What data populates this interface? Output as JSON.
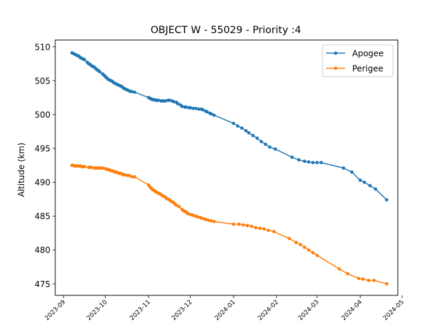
{
  "chart_data": {
    "type": "line",
    "title": "OBJECT W - 55029 - Priority :4",
    "xlabel": "",
    "ylabel": "Altitude (km)",
    "x_axis": "date",
    "xlim": [
      "2023-08-26",
      "2024-04-28"
    ],
    "ylim": [
      473.3,
      511.0
    ],
    "grid": false,
    "legend_position": "top-right",
    "x_ticks": [
      "2023-09",
      "2023-10",
      "2023-11",
      "2023-12",
      "2024-01",
      "2024-02",
      "2024-03",
      "2024-04",
      "2024-05"
    ],
    "y_ticks": [
      475,
      480,
      485,
      490,
      495,
      500,
      505,
      510
    ],
    "series": [
      {
        "name": "Apogee",
        "color": "#1f77b4",
        "marker": "circle",
        "points": [
          [
            "2023-09-07",
            509.1
          ],
          [
            "2023-09-08",
            509.0
          ],
          [
            "2023-09-09",
            508.9
          ],
          [
            "2023-09-10",
            508.8
          ],
          [
            "2023-09-11",
            508.7
          ],
          [
            "2023-09-12",
            508.6
          ],
          [
            "2023-09-13",
            508.4
          ],
          [
            "2023-09-14",
            508.3
          ],
          [
            "2023-09-15",
            508.2
          ],
          [
            "2023-09-16",
            508.1
          ],
          [
            "2023-09-18",
            507.7
          ],
          [
            "2023-09-19",
            507.5
          ],
          [
            "2023-09-20",
            507.4
          ],
          [
            "2023-09-21",
            507.2
          ],
          [
            "2023-09-22",
            507.1
          ],
          [
            "2023-09-23",
            507.0
          ],
          [
            "2023-09-24",
            506.8
          ],
          [
            "2023-09-25",
            506.6
          ],
          [
            "2023-09-26",
            506.5
          ],
          [
            "2023-09-27",
            506.3
          ],
          [
            "2023-09-29",
            506.0
          ],
          [
            "2023-09-30",
            505.8
          ],
          [
            "2023-10-01",
            505.6
          ],
          [
            "2023-10-02",
            505.4
          ],
          [
            "2023-10-03",
            505.2
          ],
          [
            "2023-10-04",
            505.1
          ],
          [
            "2023-10-05",
            505.0
          ],
          [
            "2023-10-06",
            504.9
          ],
          [
            "2023-10-07",
            504.7
          ],
          [
            "2023-10-08",
            504.6
          ],
          [
            "2023-10-09",
            504.5
          ],
          [
            "2023-10-10",
            504.4
          ],
          [
            "2023-10-11",
            504.3
          ],
          [
            "2023-10-12",
            504.2
          ],
          [
            "2023-10-13",
            504.1
          ],
          [
            "2023-10-14",
            503.9
          ],
          [
            "2023-10-15",
            503.8
          ],
          [
            "2023-10-16",
            503.7
          ],
          [
            "2023-10-17",
            503.6
          ],
          [
            "2023-10-18",
            503.5
          ],
          [
            "2023-10-19",
            503.4
          ],
          [
            "2023-10-20",
            503.4
          ],
          [
            "2023-10-22",
            503.3
          ],
          [
            "2023-11-01",
            502.5
          ],
          [
            "2023-11-02",
            502.4
          ],
          [
            "2023-11-03",
            502.3
          ],
          [
            "2023-11-04",
            502.2
          ],
          [
            "2023-11-05",
            502.2
          ],
          [
            "2023-11-06",
            502.1
          ],
          [
            "2023-11-07",
            502.1
          ],
          [
            "2023-11-08",
            502.1
          ],
          [
            "2023-11-10",
            502.0
          ],
          [
            "2023-11-11",
            502.0
          ],
          [
            "2023-11-12",
            502.0
          ],
          [
            "2023-11-13",
            502.0
          ],
          [
            "2023-11-15",
            502.1
          ],
          [
            "2023-11-16",
            502.1
          ],
          [
            "2023-11-18",
            502.0
          ],
          [
            "2023-11-19",
            501.9
          ],
          [
            "2023-11-21",
            501.8
          ],
          [
            "2023-11-22",
            501.6
          ],
          [
            "2023-11-24",
            501.4
          ],
          [
            "2023-11-25",
            501.2
          ],
          [
            "2023-11-27",
            501.1
          ],
          [
            "2023-11-28",
            501.1
          ],
          [
            "2023-11-30",
            501.0
          ],
          [
            "2023-12-01",
            501.0
          ],
          [
            "2023-12-03",
            500.9
          ],
          [
            "2023-12-05",
            500.9
          ],
          [
            "2023-12-07",
            500.8
          ],
          [
            "2023-12-09",
            500.8
          ],
          [
            "2023-12-10",
            500.7
          ],
          [
            "2023-12-12",
            500.5
          ],
          [
            "2023-12-13",
            500.4
          ],
          [
            "2023-12-15",
            500.2
          ],
          [
            "2023-12-16",
            500.1
          ],
          [
            "2023-12-18",
            499.9
          ],
          [
            "2024-01-01",
            498.7
          ],
          [
            "2024-01-04",
            498.3
          ],
          [
            "2024-01-07",
            498.0
          ],
          [
            "2024-01-10",
            497.6
          ],
          [
            "2024-01-12",
            497.3
          ],
          [
            "2024-01-15",
            496.9
          ],
          [
            "2024-01-18",
            496.5
          ],
          [
            "2024-01-21",
            496.0
          ],
          [
            "2024-01-24",
            495.6
          ],
          [
            "2024-01-27",
            495.2
          ],
          [
            "2024-01-31",
            494.9
          ],
          [
            "2024-02-12",
            493.7
          ],
          [
            "2024-02-17",
            493.3
          ],
          [
            "2024-02-21",
            493.1
          ],
          [
            "2024-02-24",
            493.0
          ],
          [
            "2024-02-27",
            492.9
          ],
          [
            "2024-03-01",
            492.9
          ],
          [
            "2024-03-04",
            492.9
          ],
          [
            "2024-03-20",
            492.1
          ],
          [
            "2024-03-26",
            491.5
          ],
          [
            "2024-04-01",
            490.3
          ],
          [
            "2024-04-04",
            490.0
          ],
          [
            "2024-04-08",
            489.5
          ],
          [
            "2024-04-12",
            489.0
          ],
          [
            "2024-04-20",
            487.4
          ]
        ]
      },
      {
        "name": "Perigee",
        "color": "#ff7f0e",
        "marker": "circle",
        "points": [
          [
            "2023-09-07",
            492.5
          ],
          [
            "2023-09-08",
            492.5
          ],
          [
            "2023-09-09",
            492.4
          ],
          [
            "2023-09-10",
            492.4
          ],
          [
            "2023-09-11",
            492.4
          ],
          [
            "2023-09-12",
            492.4
          ],
          [
            "2023-09-13",
            492.4
          ],
          [
            "2023-09-14",
            492.3
          ],
          [
            "2023-09-15",
            492.3
          ],
          [
            "2023-09-16",
            492.3
          ],
          [
            "2023-09-19",
            492.2
          ],
          [
            "2023-09-20",
            492.2
          ],
          [
            "2023-09-21",
            492.2
          ],
          [
            "2023-09-23",
            492.1
          ],
          [
            "2023-09-24",
            492.1
          ],
          [
            "2023-09-25",
            492.1
          ],
          [
            "2023-09-26",
            492.1
          ],
          [
            "2023-09-27",
            492.1
          ],
          [
            "2023-09-28",
            492.1
          ],
          [
            "2023-09-29",
            492.1
          ],
          [
            "2023-10-01",
            492.0
          ],
          [
            "2023-10-02",
            491.9
          ],
          [
            "2023-10-03",
            491.9
          ],
          [
            "2023-10-04",
            491.8
          ],
          [
            "2023-10-05",
            491.7
          ],
          [
            "2023-10-06",
            491.7
          ],
          [
            "2023-10-07",
            491.6
          ],
          [
            "2023-10-08",
            491.5
          ],
          [
            "2023-10-09",
            491.5
          ],
          [
            "2023-10-10",
            491.4
          ],
          [
            "2023-10-11",
            491.3
          ],
          [
            "2023-10-12",
            491.3
          ],
          [
            "2023-10-13",
            491.2
          ],
          [
            "2023-10-14",
            491.1
          ],
          [
            "2023-10-15",
            491.1
          ],
          [
            "2023-10-17",
            491.0
          ],
          [
            "2023-10-18",
            491.0
          ],
          [
            "2023-10-20",
            490.8
          ],
          [
            "2023-10-22",
            490.8
          ],
          [
            "2023-11-01",
            489.6
          ],
          [
            "2023-11-02",
            489.3
          ],
          [
            "2023-11-03",
            489.1
          ],
          [
            "2023-11-04",
            488.9
          ],
          [
            "2023-11-05",
            488.8
          ],
          [
            "2023-11-06",
            488.6
          ],
          [
            "2023-11-07",
            488.5
          ],
          [
            "2023-11-08",
            488.4
          ],
          [
            "2023-11-09",
            488.3
          ],
          [
            "2023-11-10",
            488.2
          ],
          [
            "2023-11-11",
            488.0
          ],
          [
            "2023-11-12",
            487.9
          ],
          [
            "2023-11-13",
            487.8
          ],
          [
            "2023-11-14",
            487.6
          ],
          [
            "2023-11-15",
            487.5
          ],
          [
            "2023-11-16",
            487.4
          ],
          [
            "2023-11-17",
            487.2
          ],
          [
            "2023-11-18",
            487.1
          ],
          [
            "2023-11-19",
            487.0
          ],
          [
            "2023-11-20",
            486.8
          ],
          [
            "2023-11-21",
            486.6
          ],
          [
            "2023-11-23",
            486.4
          ],
          [
            "2023-11-25",
            486.0
          ],
          [
            "2023-11-26",
            485.8
          ],
          [
            "2023-11-27",
            485.7
          ],
          [
            "2023-11-28",
            485.6
          ],
          [
            "2023-11-29",
            485.4
          ],
          [
            "2023-11-30",
            485.3
          ],
          [
            "2023-12-02",
            485.2
          ],
          [
            "2023-12-03",
            485.1
          ],
          [
            "2023-12-05",
            485.0
          ],
          [
            "2023-12-06",
            484.9
          ],
          [
            "2023-12-08",
            484.8
          ],
          [
            "2023-12-09",
            484.7
          ],
          [
            "2023-12-11",
            484.6
          ],
          [
            "2023-12-12",
            484.5
          ],
          [
            "2023-12-14",
            484.4
          ],
          [
            "2023-12-16",
            484.3
          ],
          [
            "2023-12-18",
            484.2
          ],
          [
            "2024-01-01",
            483.8
          ],
          [
            "2024-01-05",
            483.8
          ],
          [
            "2024-01-08",
            483.7
          ],
          [
            "2024-01-11",
            483.6
          ],
          [
            "2024-01-14",
            483.5
          ],
          [
            "2024-01-17",
            483.3
          ],
          [
            "2024-01-20",
            483.2
          ],
          [
            "2024-01-23",
            483.1
          ],
          [
            "2024-01-26",
            482.9
          ],
          [
            "2024-01-30",
            482.7
          ],
          [
            "2024-02-10",
            481.7
          ],
          [
            "2024-02-15",
            481.1
          ],
          [
            "2024-02-18",
            480.8
          ],
          [
            "2024-02-21",
            480.4
          ],
          [
            "2024-02-24",
            480.0
          ],
          [
            "2024-02-27",
            479.6
          ],
          [
            "2024-03-01",
            479.2
          ],
          [
            "2024-03-17",
            477.2
          ],
          [
            "2024-03-23",
            476.5
          ],
          [
            "2024-03-31",
            475.8
          ],
          [
            "2024-04-03",
            475.7
          ],
          [
            "2024-04-07",
            475.5
          ],
          [
            "2024-04-11",
            475.5
          ],
          [
            "2024-04-20",
            475.0
          ]
        ]
      }
    ]
  }
}
